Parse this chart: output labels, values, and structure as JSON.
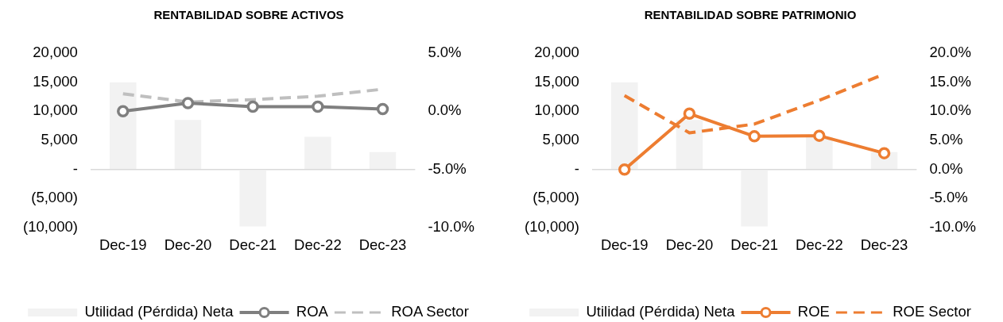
{
  "chart_data": [
    {
      "type": "bar",
      "title": "RENTABILIDAD SOBRE ACTIVOS",
      "categories": [
        "Dec-19",
        "Dec-20",
        "Dec-21",
        "Dec-22",
        "Dec-23"
      ],
      "series": [
        {
          "name": "Utilidad (Pérdida) Neta",
          "color": "#f2f2f2",
          "values": [
            15000,
            8500,
            -9800,
            5600,
            3000
          ]
        },
        {
          "name": "ROA",
          "type": "line",
          "axis": "y2",
          "color": "#7f7f7f",
          "marker": "circle",
          "values": [
            0.0,
            0.7,
            0.4,
            0.4,
            0.2
          ]
        },
        {
          "name": "ROA Sector",
          "type": "line",
          "axis": "y2",
          "color": "#bfbfbf",
          "line_style": "dashed",
          "values": [
            1.5,
            0.8,
            1.0,
            1.3,
            1.9
          ]
        }
      ],
      "ylim": [
        -10000,
        20000
      ],
      "yticks": [
        {
          "value": -10000,
          "label": "(10,000)"
        },
        {
          "value": -5000,
          "label": "(5,000)"
        },
        {
          "value": 0,
          "label": "-"
        },
        {
          "value": 5000,
          "label": "5,000"
        },
        {
          "value": 10000,
          "label": "10,000"
        },
        {
          "value": 15000,
          "label": "15,000"
        },
        {
          "value": 20000,
          "label": "20,000"
        }
      ],
      "y2lim": [
        -10,
        5
      ],
      "y2ticks": [
        {
          "value": -10,
          "label": "-10.0%"
        },
        {
          "value": -5,
          "label": "-5.0%"
        },
        {
          "value": 0,
          "label": "0.0%"
        },
        {
          "value": 5,
          "label": "5.0%"
        }
      ],
      "legend": "bottom"
    },
    {
      "type": "bar",
      "title": "RENTABILIDAD SOBRE PATRIMONIO",
      "categories": [
        "Dec-19",
        "Dec-20",
        "Dec-21",
        "Dec-22",
        "Dec-23"
      ],
      "series": [
        {
          "name": "Utilidad (Pérdida) Neta",
          "color": "#f2f2f2",
          "values": [
            15000,
            8500,
            -9800,
            5600,
            3000
          ]
        },
        {
          "name": "ROE",
          "type": "line",
          "axis": "y2",
          "color": "#ed7d31",
          "marker": "circle",
          "values": [
            0.0,
            9.6,
            5.7,
            5.8,
            2.8
          ]
        },
        {
          "name": "ROE Sector",
          "type": "line",
          "axis": "y2",
          "color": "#ed7d31",
          "line_style": "dashed",
          "values": [
            12.7,
            6.3,
            7.8,
            11.9,
            16.4
          ]
        }
      ],
      "ylim": [
        -10000,
        20000
      ],
      "yticks": [
        {
          "value": -10000,
          "label": "(10,000)"
        },
        {
          "value": -5000,
          "label": "(5,000)"
        },
        {
          "value": 0,
          "label": "-"
        },
        {
          "value": 5000,
          "label": "5,000"
        },
        {
          "value": 10000,
          "label": "10,000"
        },
        {
          "value": 15000,
          "label": "15,000"
        },
        {
          "value": 20000,
          "label": "20,000"
        }
      ],
      "y2lim": [
        -10,
        20
      ],
      "y2ticks": [
        {
          "value": -10,
          "label": "-10.0%"
        },
        {
          "value": -5,
          "label": "-5.0%"
        },
        {
          "value": 0,
          "label": "0.0%"
        },
        {
          "value": 5,
          "label": "5.0%"
        },
        {
          "value": 10,
          "label": "10.0%"
        },
        {
          "value": 15,
          "label": "15.0%"
        },
        {
          "value": 20,
          "label": "20.0%"
        }
      ],
      "legend": "bottom"
    }
  ]
}
